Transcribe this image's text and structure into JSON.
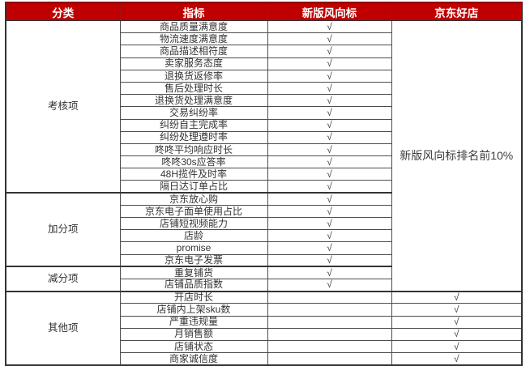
{
  "header": {
    "category": "分类",
    "indicator": "指标",
    "new_version": "新版风向标",
    "jd_good_store": "京东好店"
  },
  "checkmark": "√",
  "colors": {
    "header_bg": "#c00000",
    "header_text": "#ffffff",
    "border": "#4d4d4d",
    "body_text": "#333333"
  },
  "jd_merged": {
    "text": "新版风向标排名前10%",
    "sections": [
      0,
      1,
      2
    ]
  },
  "sections": [
    {
      "category": "考核项",
      "rows": [
        {
          "indicator": "商品质量满意度",
          "new_version": "√",
          "jd_good_store": ""
        },
        {
          "indicator": "物流速度满意度",
          "new_version": "√",
          "jd_good_store": ""
        },
        {
          "indicator": "商品描述相符度",
          "new_version": "√",
          "jd_good_store": ""
        },
        {
          "indicator": "卖家服务态度",
          "new_version": "√",
          "jd_good_store": ""
        },
        {
          "indicator": "退换货返修率",
          "new_version": "√",
          "jd_good_store": ""
        },
        {
          "indicator": "售后处理时长",
          "new_version": "√",
          "jd_good_store": ""
        },
        {
          "indicator": "退换货处理满意度",
          "new_version": "√",
          "jd_good_store": ""
        },
        {
          "indicator": "交易纠纷率",
          "new_version": "√",
          "jd_good_store": ""
        },
        {
          "indicator": "纠纷自主完成率",
          "new_version": "√",
          "jd_good_store": ""
        },
        {
          "indicator": "纠纷处理遵时率",
          "new_version": "√",
          "jd_good_store": ""
        },
        {
          "indicator": "咚咚平均响应时长",
          "new_version": "√",
          "jd_good_store": ""
        },
        {
          "indicator": "咚咚30s应答率",
          "new_version": "√",
          "jd_good_store": ""
        },
        {
          "indicator": "48H揽件及时率",
          "new_version": "√",
          "jd_good_store": ""
        },
        {
          "indicator": "隔日达订单占比",
          "new_version": "√",
          "jd_good_store": ""
        }
      ]
    },
    {
      "category": "加分项",
      "rows": [
        {
          "indicator": "京东放心购",
          "new_version": "√",
          "jd_good_store": ""
        },
        {
          "indicator": "京东电子面单使用占比",
          "new_version": "√",
          "jd_good_store": ""
        },
        {
          "indicator": "店铺短视频能力",
          "new_version": "√",
          "jd_good_store": ""
        },
        {
          "indicator": "店龄",
          "new_version": "√",
          "jd_good_store": ""
        },
        {
          "indicator": "promise",
          "new_version": "√",
          "jd_good_store": ""
        },
        {
          "indicator": "京东电子发票",
          "new_version": "√",
          "jd_good_store": ""
        }
      ]
    },
    {
      "category": "减分项",
      "rows": [
        {
          "indicator": "重复铺货",
          "new_version": "√",
          "jd_good_store": ""
        },
        {
          "indicator": "店铺品质指数",
          "new_version": "√",
          "jd_good_store": ""
        }
      ]
    },
    {
      "category": "其他项",
      "rows": [
        {
          "indicator": "开店时长",
          "new_version": "",
          "jd_good_store": "√"
        },
        {
          "indicator": "店铺内上架sku数",
          "new_version": "",
          "jd_good_store": "√"
        },
        {
          "indicator": "严重违规量",
          "new_version": "",
          "jd_good_store": "√"
        },
        {
          "indicator": "月销售额",
          "new_version": "",
          "jd_good_store": "√"
        },
        {
          "indicator": "店铺状态",
          "new_version": "",
          "jd_good_store": "√"
        },
        {
          "indicator": "商家诚信度",
          "new_version": "",
          "jd_good_store": "√"
        }
      ]
    }
  ]
}
